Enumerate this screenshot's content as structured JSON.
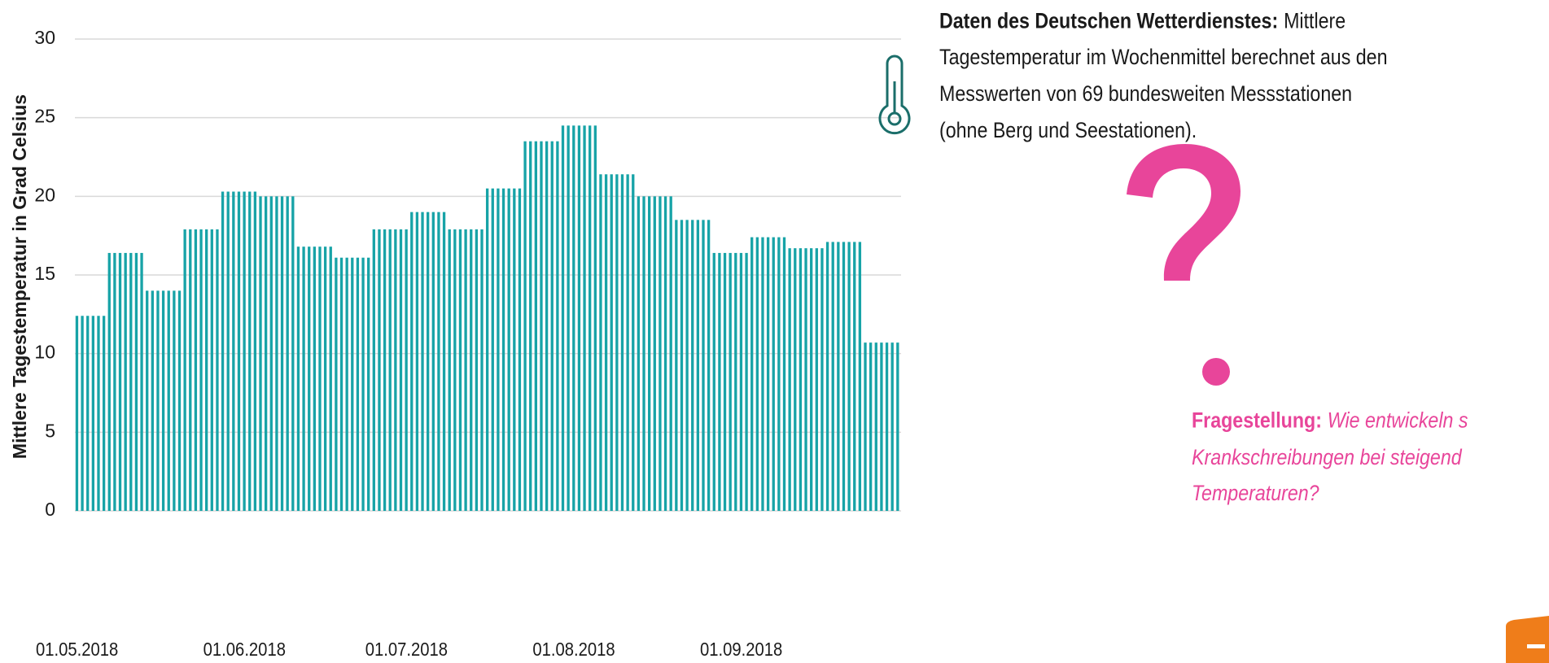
{
  "chart_data": {
    "type": "bar",
    "y_label": "Mittlere Tagestemperatur in Grad Celsius",
    "color": "#17a3a7",
    "grid": true,
    "ylim": [
      0,
      30
    ],
    "yticks": [
      0,
      5,
      10,
      15,
      20,
      25,
      30
    ],
    "categories": [
      "01.05.2018",
      null,
      null,
      null,
      null,
      null,
      null,
      null,
      null,
      null,
      null,
      null,
      null,
      null,
      null,
      null,
      null,
      null,
      null,
      null,
      null,
      null,
      null,
      null,
      null,
      null,
      null,
      null,
      null,
      null,
      null,
      "01.06.2018",
      null,
      null,
      null,
      null,
      null,
      null,
      null,
      null,
      null,
      null,
      null,
      null,
      null,
      null,
      null,
      null,
      null,
      null,
      null,
      null,
      null,
      null,
      null,
      null,
      null,
      null,
      null,
      null,
      null,
      "01.07.2018",
      null,
      null,
      null,
      null,
      null,
      null,
      null,
      null,
      null,
      null,
      null,
      null,
      null,
      null,
      null,
      null,
      null,
      null,
      null,
      null,
      null,
      null,
      null,
      null,
      null,
      null,
      null,
      null,
      null,
      null,
      "01.08.2018",
      null,
      null,
      null,
      null,
      null,
      null,
      null,
      null,
      null,
      null,
      null,
      null,
      null,
      null,
      null,
      null,
      null,
      null,
      null,
      null,
      null,
      null,
      null,
      null,
      null,
      null,
      null,
      null,
      null,
      null,
      "01.09.2018",
      null,
      null,
      null,
      null,
      null,
      null,
      null,
      null,
      null,
      null,
      null,
      null,
      null,
      null,
      null,
      null,
      null,
      null,
      null,
      null,
      null,
      null,
      null,
      null,
      null,
      null,
      null,
      null,
      null
    ],
    "values": [
      12.4,
      12.4,
      12.4,
      12.4,
      12.4,
      12.4,
      16.4,
      16.4,
      16.4,
      16.4,
      16.4,
      16.4,
      16.4,
      14.0,
      14.0,
      14.0,
      14.0,
      14.0,
      14.0,
      14.0,
      17.9,
      17.9,
      17.9,
      17.9,
      17.9,
      17.9,
      17.9,
      20.3,
      20.3,
      20.3,
      20.3,
      20.3,
      20.3,
      20.3,
      20.0,
      20.0,
      20.0,
      20.0,
      20.0,
      20.0,
      20.0,
      16.8,
      16.8,
      16.8,
      16.8,
      16.8,
      16.8,
      16.8,
      16.1,
      16.1,
      16.1,
      16.1,
      16.1,
      16.1,
      16.1,
      17.9,
      17.9,
      17.9,
      17.9,
      17.9,
      17.9,
      17.9,
      19.0,
      19.0,
      19.0,
      19.0,
      19.0,
      19.0,
      19.0,
      17.9,
      17.9,
      17.9,
      17.9,
      17.9,
      17.9,
      17.9,
      20.5,
      20.5,
      20.5,
      20.5,
      20.5,
      20.5,
      20.5,
      23.5,
      23.5,
      23.5,
      23.5,
      23.5,
      23.5,
      23.5,
      24.5,
      24.5,
      24.5,
      24.5,
      24.5,
      24.5,
      24.5,
      21.4,
      21.4,
      21.4,
      21.4,
      21.4,
      21.4,
      21.4,
      20.0,
      20.0,
      20.0,
      20.0,
      20.0,
      20.0,
      20.0,
      18.5,
      18.5,
      18.5,
      18.5,
      18.5,
      18.5,
      18.5,
      16.4,
      16.4,
      16.4,
      16.4,
      16.4,
      16.4,
      16.4,
      17.4,
      17.4,
      17.4,
      17.4,
      17.4,
      17.4,
      17.4,
      16.7,
      16.7,
      16.7,
      16.7,
      16.7,
      16.7,
      16.7,
      17.1,
      17.1,
      17.1,
      17.1,
      17.1,
      17.1,
      17.1,
      10.7,
      10.7,
      10.7,
      10.7,
      10.7,
      10.7,
      10.7
    ]
  },
  "source_note": {
    "label": "Daten des Deutschen Wetterdienstes:",
    "lines": [
      "Mittlere",
      "Tagestemperatur im Wochenmittel berechnet aus den",
      "Messwerten von 69 bundesweiten Messstationen",
      "(ohne Berg und Seestationen)."
    ]
  },
  "question": {
    "label": "Fragestellung:",
    "lines": [
      "Wie entwickeln s",
      "Krankschreibungen bei steigend",
      "Temperaturen?"
    ]
  }
}
